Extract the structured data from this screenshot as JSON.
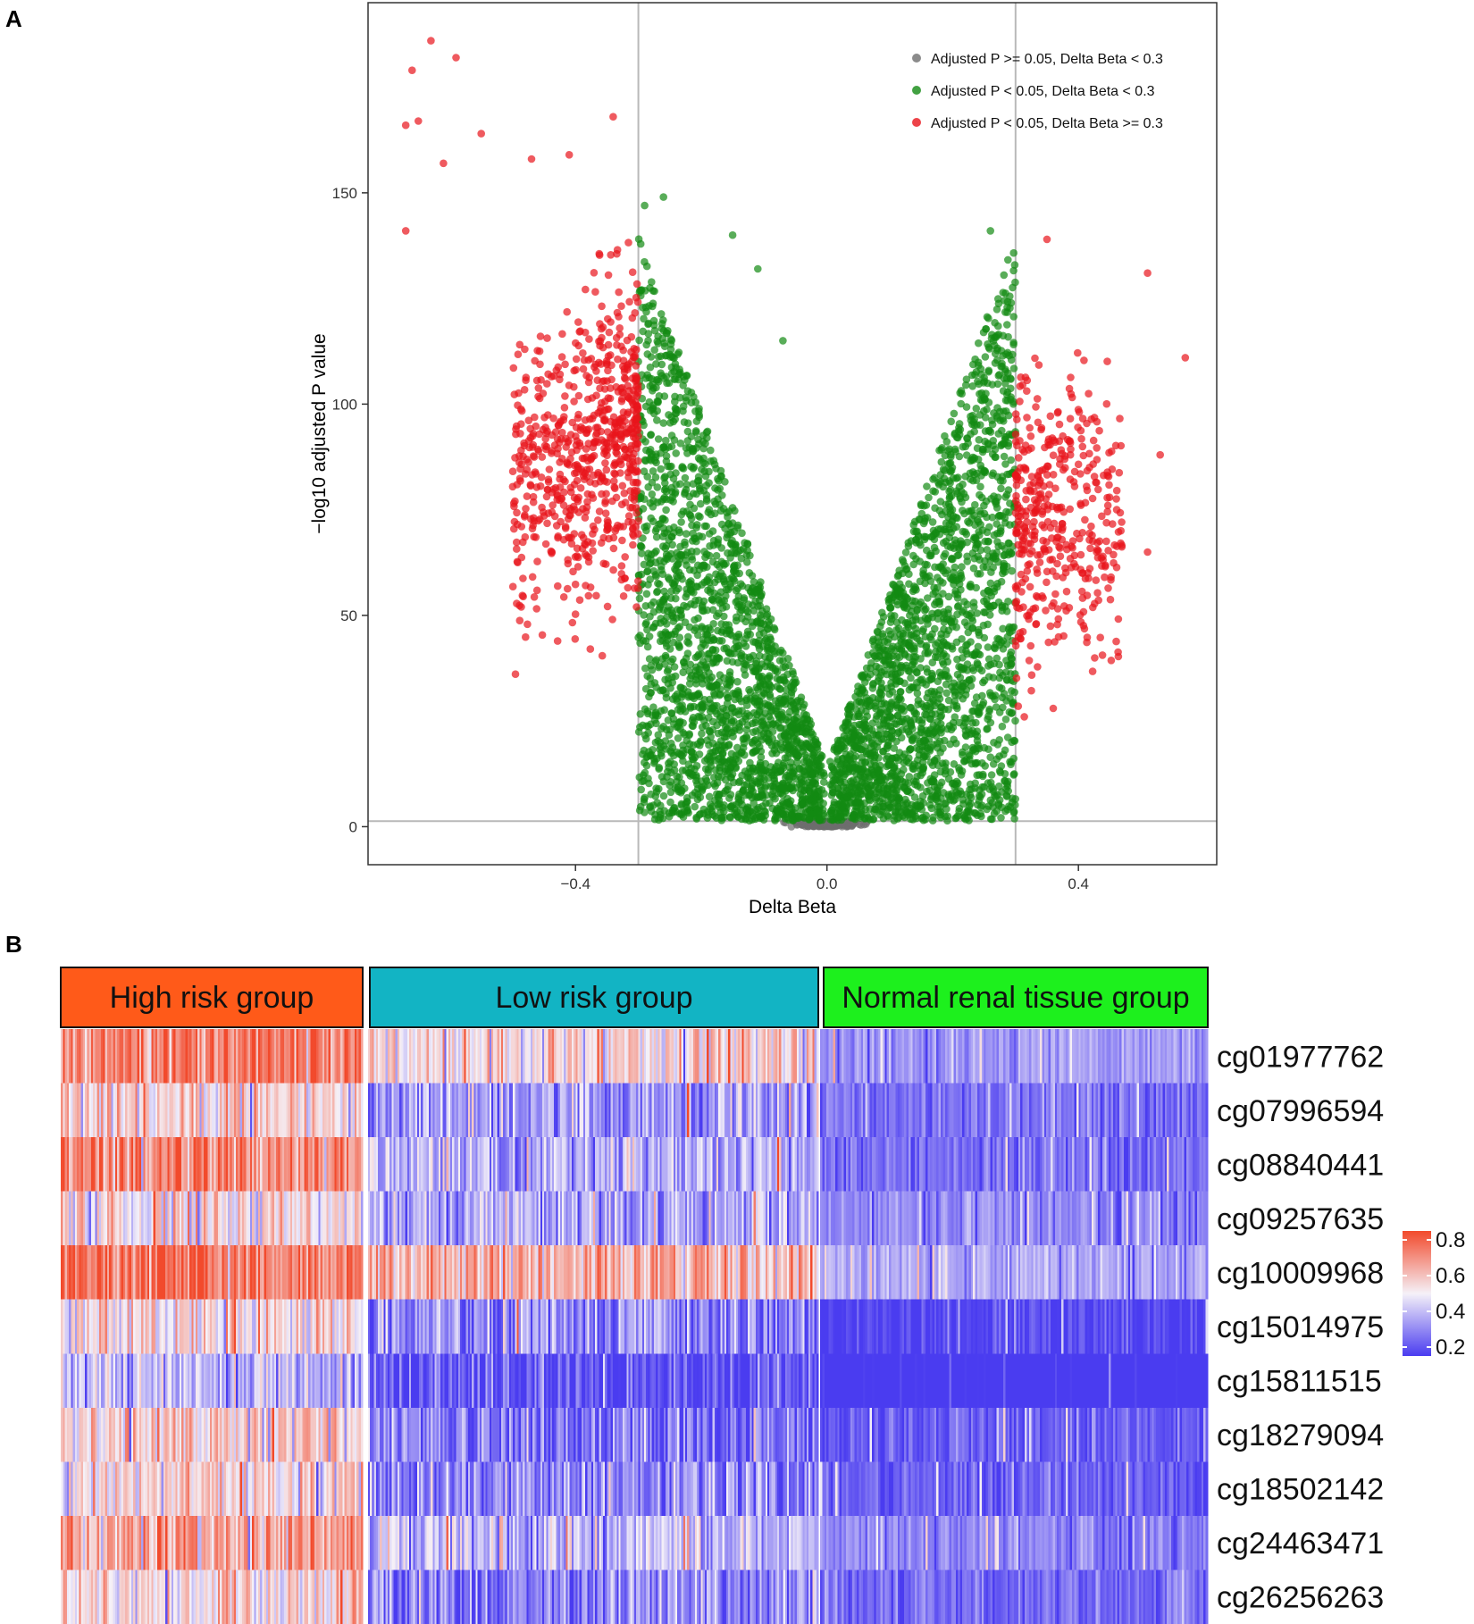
{
  "panel_labels": {
    "a": "A",
    "b": "B"
  },
  "colors": {
    "grey": "#6e6e6e",
    "green": "#138a13",
    "red": "#e8141b",
    "high_risk": "#ff5a19",
    "low_risk": "#12b4c4",
    "normal": "#1df01d",
    "heat_low": "#4a3cf0",
    "heat_mid": "#f5f1f8",
    "heat_high": "#f24a2c"
  },
  "chart_data": [
    {
      "type": "scatter",
      "title": "",
      "xlabel": "Delta Beta",
      "ylabel": "−log10 adjusted P value",
      "xlim": [
        -0.73,
        0.62
      ],
      "ylim": [
        -9,
        195
      ],
      "xticks": [
        -0.4,
        0.0,
        0.4
      ],
      "xtick_labels": [
        "−0.4",
        "0.0",
        "0.4"
      ],
      "yticks": [
        0,
        50,
        100,
        150
      ],
      "ytick_labels": [
        "0",
        "50",
        "100",
        "150"
      ],
      "reference_lines": {
        "vertical": [
          -0.3,
          0.3
        ],
        "horizontal": [
          1.3
        ]
      },
      "grid": false,
      "legend_position": "top-right",
      "legend": [
        {
          "label": "Adjusted P >= 0.05, Delta Beta < 0.3",
          "color": "grey"
        },
        {
          "label": "Adjusted P < 0.05, Delta Beta < 0.3",
          "color": "green"
        },
        {
          "label": "Adjusted P < 0.05, Delta Beta >= 0.3",
          "color": "red"
        }
      ],
      "highlighted_points": [
        {
          "x": -0.63,
          "y": 186,
          "series": "red"
        },
        {
          "x": -0.66,
          "y": 179,
          "series": "red"
        },
        {
          "x": -0.59,
          "y": 182,
          "series": "red"
        },
        {
          "x": -0.67,
          "y": 166,
          "series": "red"
        },
        {
          "x": -0.65,
          "y": 167,
          "series": "red"
        },
        {
          "x": -0.34,
          "y": 168,
          "series": "red"
        },
        {
          "x": -0.55,
          "y": 164,
          "series": "red"
        },
        {
          "x": -0.61,
          "y": 157,
          "series": "red"
        },
        {
          "x": -0.67,
          "y": 141,
          "series": "red"
        },
        {
          "x": -0.41,
          "y": 159,
          "series": "red"
        },
        {
          "x": -0.47,
          "y": 158,
          "series": "red"
        },
        {
          "x": -0.26,
          "y": 149,
          "series": "green"
        },
        {
          "x": -0.29,
          "y": 147,
          "series": "green"
        },
        {
          "x": -0.15,
          "y": 140,
          "series": "green"
        },
        {
          "x": 0.26,
          "y": 141,
          "series": "green"
        },
        {
          "x": 0.35,
          "y": 139,
          "series": "red"
        },
        {
          "x": 0.51,
          "y": 131,
          "series": "red"
        },
        {
          "x": 0.57,
          "y": 111,
          "series": "red"
        },
        {
          "x": 0.53,
          "y": 88,
          "series": "red"
        },
        {
          "x": 0.51,
          "y": 65,
          "series": "red"
        },
        {
          "x": 0.36,
          "y": 28,
          "series": "red"
        },
        {
          "x": -0.07,
          "y": 115,
          "series": "green"
        },
        {
          "x": -0.11,
          "y": 132,
          "series": "green"
        }
      ]
    },
    {
      "type": "heatmap",
      "groups": [
        {
          "name": "High risk group",
          "color": "high_risk"
        },
        {
          "name": "Low risk group",
          "color": "low_risk"
        },
        {
          "name": "Normal renal tissue group",
          "color": "normal"
        }
      ],
      "rows": [
        {
          "name": "cg01977762",
          "group_means": [
            0.74,
            0.55,
            0.33
          ]
        },
        {
          "name": "cg07996594",
          "group_means": [
            0.55,
            0.33,
            0.25
          ]
        },
        {
          "name": "cg08840441",
          "group_means": [
            0.72,
            0.38,
            0.25
          ]
        },
        {
          "name": "cg09257635",
          "group_means": [
            0.52,
            0.36,
            0.31
          ]
        },
        {
          "name": "cg10009968",
          "group_means": [
            0.76,
            0.62,
            0.36
          ]
        },
        {
          "name": "cg15014975",
          "group_means": [
            0.55,
            0.3,
            0.16
          ]
        },
        {
          "name": "cg15811515",
          "group_means": [
            0.4,
            0.2,
            0.08
          ]
        },
        {
          "name": "cg18279094",
          "group_means": [
            0.56,
            0.27,
            0.22
          ]
        },
        {
          "name": "cg18502142",
          "group_means": [
            0.55,
            0.3,
            0.21
          ]
        },
        {
          "name": "cg24463471",
          "group_means": [
            0.66,
            0.4,
            0.3
          ]
        },
        {
          "name": "cg26256263",
          "group_means": [
            0.53,
            0.28,
            0.24
          ]
        }
      ],
      "colorbar": {
        "ticks": [
          0.8,
          0.6,
          0.4,
          0.2
        ],
        "tick_labels": [
          "0.8",
          "0.6",
          "0.4",
          "0.2"
        ],
        "range": [
          0.15,
          0.85
        ]
      }
    }
  ]
}
